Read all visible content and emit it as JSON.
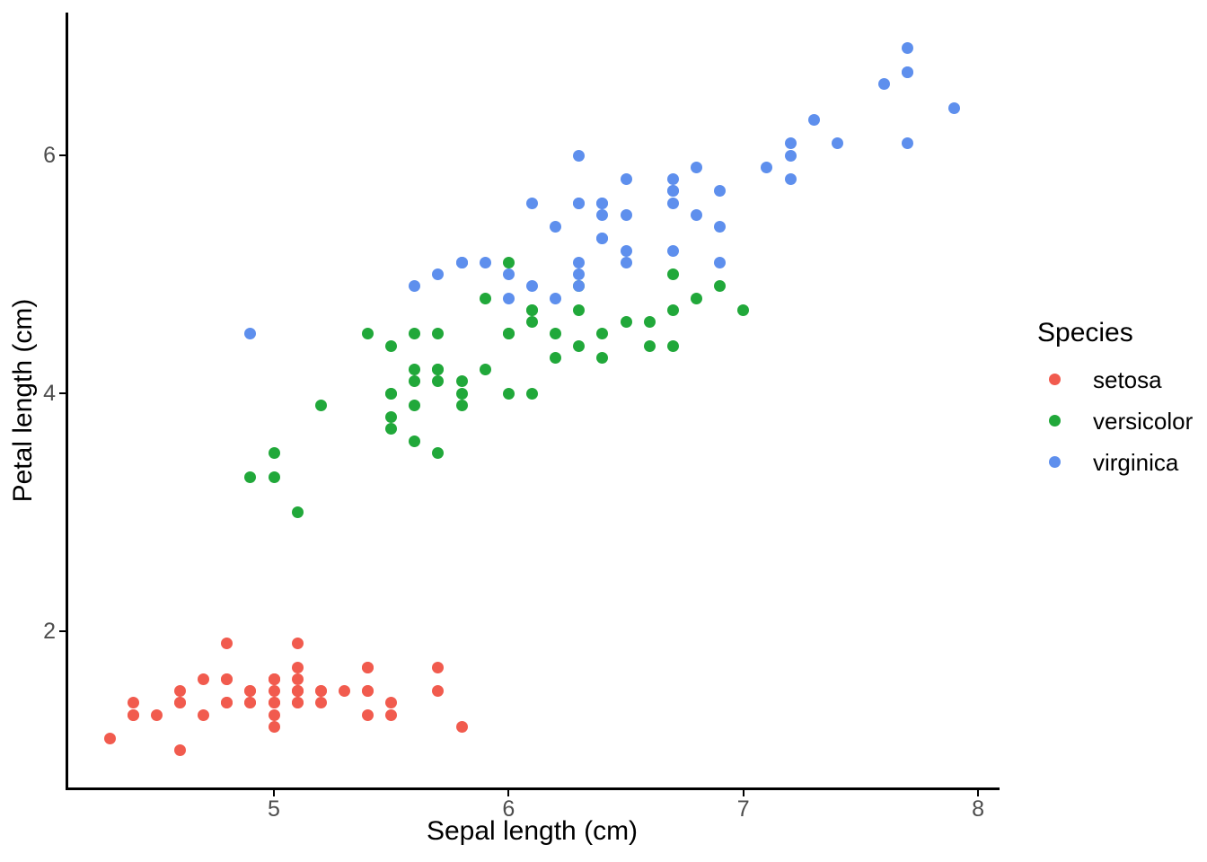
{
  "figure": {
    "background": "#ffffff",
    "axis_color": "#000000",
    "tick_label_color": "#4d4d4d"
  },
  "chart_data": {
    "type": "scatter",
    "title": "",
    "xlabel": "Sepal length (cm)",
    "ylabel": "Petal length (cm)",
    "xlim": [
      4.12,
      8.08
    ],
    "ylim": [
      0.69,
      7.2
    ],
    "x_ticks": [
      5,
      6,
      7,
      8
    ],
    "y_ticks": [
      2,
      4,
      6
    ],
    "grid": false,
    "legend": {
      "title": "Species",
      "position": "right"
    },
    "series": [
      {
        "name": "setosa",
        "color": "#F15B4E",
        "points": [
          [
            5.1,
            1.4
          ],
          [
            4.9,
            1.4
          ],
          [
            4.7,
            1.3
          ],
          [
            4.6,
            1.5
          ],
          [
            5.0,
            1.4
          ],
          [
            5.4,
            1.7
          ],
          [
            4.6,
            1.4
          ],
          [
            5.0,
            1.5
          ],
          [
            4.4,
            1.4
          ],
          [
            4.9,
            1.5
          ],
          [
            5.4,
            1.5
          ],
          [
            4.8,
            1.6
          ],
          [
            4.8,
            1.4
          ],
          [
            4.3,
            1.1
          ],
          [
            5.8,
            1.2
          ],
          [
            5.7,
            1.5
          ],
          [
            5.4,
            1.3
          ],
          [
            5.1,
            1.4
          ],
          [
            5.7,
            1.7
          ],
          [
            5.1,
            1.5
          ],
          [
            5.4,
            1.7
          ],
          [
            5.1,
            1.5
          ],
          [
            4.6,
            1.0
          ],
          [
            5.1,
            1.7
          ],
          [
            4.8,
            1.9
          ],
          [
            5.0,
            1.6
          ],
          [
            5.0,
            1.6
          ],
          [
            5.2,
            1.5
          ],
          [
            5.2,
            1.4
          ],
          [
            4.7,
            1.6
          ],
          [
            4.8,
            1.6
          ],
          [
            5.4,
            1.5
          ],
          [
            5.2,
            1.5
          ],
          [
            5.5,
            1.4
          ],
          [
            4.9,
            1.5
          ],
          [
            5.0,
            1.2
          ],
          [
            5.5,
            1.3
          ],
          [
            4.9,
            1.4
          ],
          [
            4.4,
            1.3
          ],
          [
            5.1,
            1.5
          ],
          [
            5.0,
            1.3
          ],
          [
            4.5,
            1.3
          ],
          [
            4.4,
            1.3
          ],
          [
            5.0,
            1.6
          ],
          [
            5.1,
            1.9
          ],
          [
            4.8,
            1.4
          ],
          [
            5.1,
            1.6
          ],
          [
            4.6,
            1.4
          ],
          [
            5.3,
            1.5
          ],
          [
            5.0,
            1.4
          ]
        ]
      },
      {
        "name": "versicolor",
        "color": "#21A83A",
        "points": [
          [
            7.0,
            4.7
          ],
          [
            6.4,
            4.5
          ],
          [
            6.9,
            4.9
          ],
          [
            5.5,
            4.0
          ],
          [
            6.5,
            4.6
          ],
          [
            5.7,
            4.5
          ],
          [
            6.3,
            4.7
          ],
          [
            4.9,
            3.3
          ],
          [
            6.6,
            4.6
          ],
          [
            5.2,
            3.9
          ],
          [
            5.0,
            3.5
          ],
          [
            5.9,
            4.2
          ],
          [
            6.0,
            4.0
          ],
          [
            6.1,
            4.7
          ],
          [
            5.6,
            3.6
          ],
          [
            6.7,
            4.4
          ],
          [
            5.6,
            4.5
          ],
          [
            5.8,
            4.1
          ],
          [
            6.2,
            4.5
          ],
          [
            5.6,
            3.9
          ],
          [
            5.9,
            4.8
          ],
          [
            6.1,
            4.0
          ],
          [
            6.3,
            4.9
          ],
          [
            6.1,
            4.7
          ],
          [
            6.4,
            4.3
          ],
          [
            6.6,
            4.4
          ],
          [
            6.8,
            4.8
          ],
          [
            6.7,
            5.0
          ],
          [
            6.0,
            4.5
          ],
          [
            5.7,
            3.5
          ],
          [
            5.5,
            3.8
          ],
          [
            5.5,
            3.7
          ],
          [
            5.8,
            3.9
          ],
          [
            6.0,
            5.1
          ],
          [
            5.4,
            4.5
          ],
          [
            6.0,
            4.5
          ],
          [
            6.7,
            4.7
          ],
          [
            6.3,
            4.4
          ],
          [
            5.6,
            4.1
          ],
          [
            5.5,
            4.0
          ],
          [
            5.5,
            4.4
          ],
          [
            6.1,
            4.6
          ],
          [
            5.8,
            4.0
          ],
          [
            5.0,
            3.3
          ],
          [
            5.6,
            4.2
          ],
          [
            5.7,
            4.2
          ],
          [
            5.7,
            4.2
          ],
          [
            6.2,
            4.3
          ],
          [
            5.1,
            3.0
          ],
          [
            5.7,
            4.1
          ]
        ]
      },
      {
        "name": "virginica",
        "color": "#5E8FED",
        "points": [
          [
            6.3,
            6.0
          ],
          [
            5.8,
            5.1
          ],
          [
            7.1,
            5.9
          ],
          [
            6.3,
            5.6
          ],
          [
            6.5,
            5.8
          ],
          [
            7.6,
            6.6
          ],
          [
            4.9,
            4.5
          ],
          [
            7.3,
            6.3
          ],
          [
            6.7,
            5.8
          ],
          [
            7.2,
            6.1
          ],
          [
            6.5,
            5.1
          ],
          [
            6.4,
            5.3
          ],
          [
            6.8,
            5.5
          ],
          [
            5.7,
            5.0
          ],
          [
            5.8,
            5.1
          ],
          [
            6.4,
            5.3
          ],
          [
            6.5,
            5.5
          ],
          [
            7.7,
            6.7
          ],
          [
            7.7,
            6.9
          ],
          [
            6.0,
            5.0
          ],
          [
            6.9,
            5.7
          ],
          [
            5.6,
            4.9
          ],
          [
            7.7,
            6.7
          ],
          [
            6.3,
            4.9
          ],
          [
            6.7,
            5.7
          ],
          [
            7.2,
            6.0
          ],
          [
            6.2,
            4.8
          ],
          [
            6.1,
            4.9
          ],
          [
            6.4,
            5.6
          ],
          [
            7.2,
            5.8
          ],
          [
            7.4,
            6.1
          ],
          [
            7.9,
            6.4
          ],
          [
            6.4,
            5.6
          ],
          [
            6.3,
            5.1
          ],
          [
            6.1,
            5.6
          ],
          [
            7.7,
            6.1
          ],
          [
            6.3,
            5.6
          ],
          [
            6.4,
            5.5
          ],
          [
            6.0,
            4.8
          ],
          [
            6.9,
            5.4
          ],
          [
            6.7,
            5.6
          ],
          [
            6.9,
            5.1
          ],
          [
            5.8,
            5.1
          ],
          [
            6.8,
            5.9
          ],
          [
            6.7,
            5.7
          ],
          [
            6.7,
            5.2
          ],
          [
            6.3,
            5.0
          ],
          [
            6.5,
            5.2
          ],
          [
            6.2,
            5.4
          ],
          [
            5.9,
            5.1
          ]
        ]
      }
    ]
  }
}
